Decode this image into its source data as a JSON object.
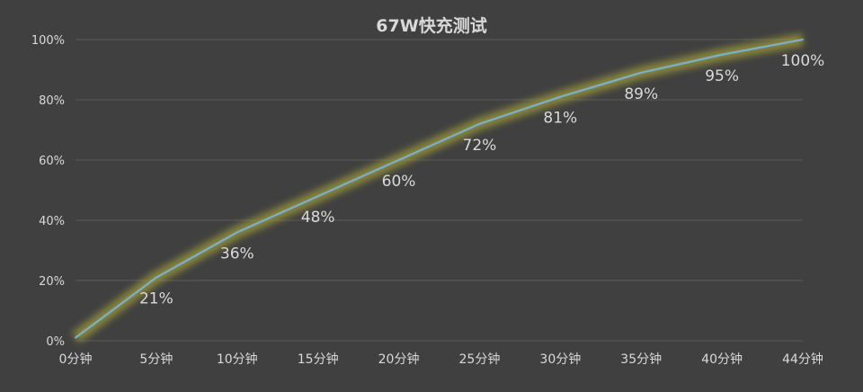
{
  "chart_data": {
    "type": "line",
    "title": "67W快充测试",
    "categories": [
      "0分钟",
      "5分钟",
      "10分钟",
      "15分钟",
      "20分钟",
      "25分钟",
      "30分钟",
      "35分钟",
      "40分钟",
      "44分钟"
    ],
    "series": [
      {
        "values": [
          1,
          21,
          36,
          48,
          60,
          72,
          81,
          89,
          95,
          100
        ]
      }
    ],
    "data_labels": [
      "",
      "21%",
      "36%",
      "48%",
      "60%",
      "72%",
      "81%",
      "89%",
      "95%",
      "100%"
    ],
    "yticks": [
      "0%",
      "20%",
      "40%",
      "60%",
      "80%",
      "100%"
    ],
    "ylim": [
      0,
      100
    ],
    "grid": true,
    "legend": "none",
    "colors": {
      "background": "#404040",
      "line": "#7ab0cf",
      "glow": "#a6a23a",
      "grid": "#5a5a5a",
      "text": "#d9d9d9"
    }
  }
}
